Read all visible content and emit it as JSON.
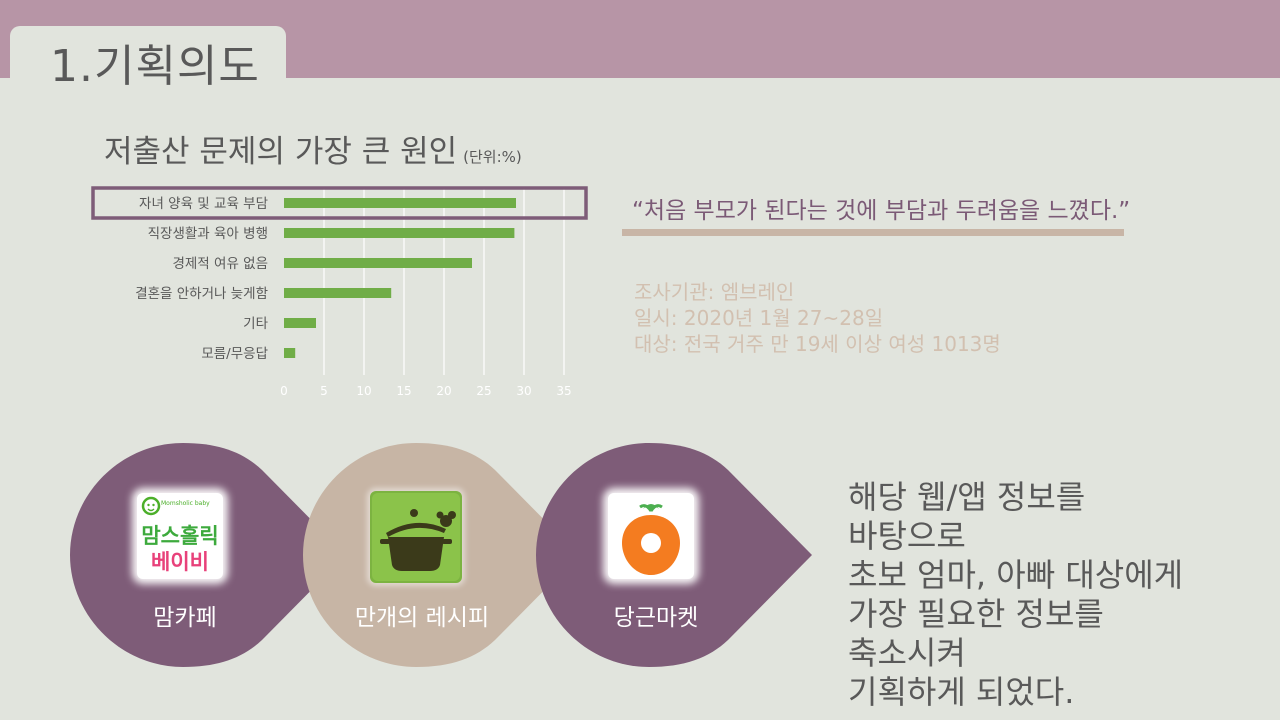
{
  "header": {
    "title": "1.기획의도"
  },
  "chart_title": {
    "text": "저출산 문제의 가장 큰 원인",
    "unit": "(단위:%)"
  },
  "chart_data": {
    "type": "bar",
    "orientation": "horizontal",
    "title": "저출산 문제의 가장 큰 원인",
    "unit": "(단위:%)",
    "categories": [
      "자녀 양육 및 교육 부담",
      "직장생활과 육아 병행",
      "경제적 여유 없음",
      "결혼을 안하거나 늦게함",
      "기타",
      "모름/무응답"
    ],
    "values": [
      29,
      28.8,
      23.5,
      13.4,
      4,
      1.4
    ],
    "xticks": [
      0,
      5,
      10,
      15,
      20,
      25,
      30,
      35
    ],
    "xlim": [
      0,
      35
    ],
    "highlighted_category": "자녀 양육 및 교육 부담",
    "bar_color": "#70ad47",
    "grid": true
  },
  "quote": {
    "text": "“처음 부모가 된다는 것에 부담과 두려움을 느꼈다.”"
  },
  "survey": {
    "agency": "조사기관: 엠브레인",
    "date": "일시: 2020년 1월 27~28일",
    "target": "대상: 전국 거주 만 19세 이상 여성 1013명"
  },
  "apps": [
    {
      "label": "맘카페",
      "icon": "momsholic-baby-logo",
      "logo_text_top": "맘스홀릭",
      "logo_text_bottom": "베이비",
      "logo_small": "Momsholic baby",
      "color": "#7e5c78"
    },
    {
      "label": "만개의 레시피",
      "icon": "cooking-pot-icon",
      "color": "#c7b5a5"
    },
    {
      "label": "당근마켓",
      "icon": "carrot-icon",
      "color": "#7e5c78"
    }
  ],
  "description": {
    "lines": [
      "해당 웹/앱 정보를",
      "바탕으로",
      "초보 엄마, 아빠 대상에게",
      "가장 필요한 정보를",
      "축소시켜",
      "기획하게 되었다."
    ]
  },
  "colors": {
    "header": "#b795a6",
    "background": "#e1e4dd",
    "accent_purple": "#7e5c78",
    "accent_beige": "#c7b5a5",
    "text_gray": "#595959"
  }
}
